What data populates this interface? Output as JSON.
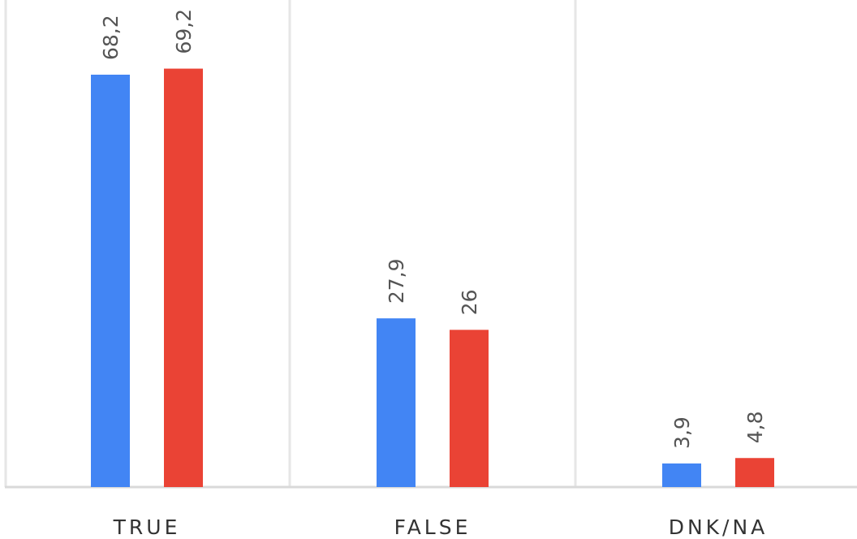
{
  "chart_data": {
    "type": "bar",
    "title": "",
    "xlabel": "",
    "ylabel": "",
    "categories": [
      "TRUE",
      "FALSE",
      "DNK/NA"
    ],
    "series": [
      {
        "color": "#4285f4",
        "values": [
          68.2,
          27.9,
          3.9
        ],
        "labels": [
          "68,2",
          "27,9",
          "3,9"
        ]
      },
      {
        "color": "#ea4335",
        "values": [
          69.2,
          26,
          4.8
        ],
        "labels": [
          "69,2",
          "26",
          "4,8"
        ]
      }
    ],
    "ylim": [
      0,
      80
    ],
    "grid": "vertical separators"
  }
}
